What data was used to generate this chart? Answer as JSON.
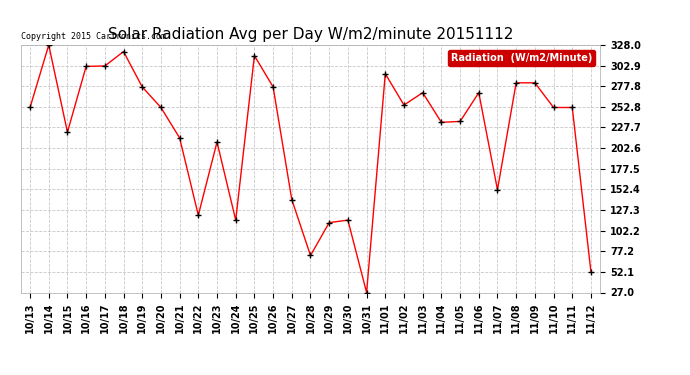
{
  "title": "Solar Radiation Avg per Day W/m2/minute 20151112",
  "copyright": "Copyright 2015 Cartronics.com",
  "legend_label": "Radiation  (W/m2/Minute)",
  "dates": [
    "10/13",
    "10/14",
    "10/15",
    "10/16",
    "10/17",
    "10/18",
    "10/19",
    "10/20",
    "10/21",
    "10/22",
    "10/23",
    "10/24",
    "10/25",
    "10/26",
    "10/27",
    "10/28",
    "10/29",
    "10/30",
    "10/31",
    "11/01",
    "11/02",
    "11/03",
    "11/04",
    "11/05",
    "11/06",
    "11/07",
    "11/08",
    "11/09",
    "11/10",
    "11/11",
    "11/12"
  ],
  "values": [
    252.0,
    328.0,
    222.0,
    302.0,
    302.5,
    320.0,
    277.0,
    252.0,
    215.0,
    121.0,
    210.0,
    115.0,
    315.0,
    277.0,
    140.0,
    72.0,
    112.0,
    115.0,
    27.0,
    293.0,
    255.0,
    270.0,
    234.0,
    235.0,
    270.0,
    152.0,
    282.0,
    282.0,
    252.0,
    252.0,
    52.0
  ],
  "ymin": 27.0,
  "ymax": 328.0,
  "yticks": [
    27.0,
    52.1,
    77.2,
    102.2,
    127.3,
    152.4,
    177.5,
    202.6,
    227.7,
    252.8,
    277.8,
    302.9,
    328.0
  ],
  "line_color": "red",
  "marker_color": "black",
  "bg_color": "#ffffff",
  "grid_color": "#c8c8c8",
  "title_fontsize": 11,
  "tick_fontsize": 7,
  "legend_bg": "#cc0000",
  "legend_fg": "#ffffff"
}
